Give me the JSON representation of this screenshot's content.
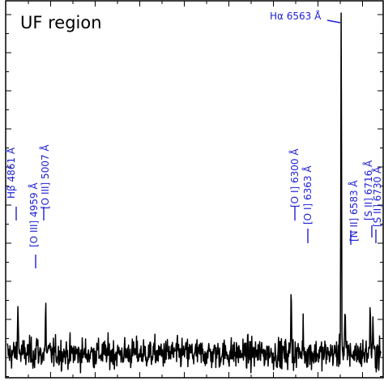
{
  "chart_data": {
    "type": "line",
    "title": "UF region",
    "xlabel": "",
    "ylabel": "",
    "xlim": [
      4800,
      6780
    ],
    "ylim": [
      -0.7,
      10.5
    ],
    "grid": false,
    "legend": "none",
    "line_color": "#000000",
    "label_color": "#1f1fd6",
    "noise_sigma": 0.32,
    "peaks": [
      {
        "label": "Hβ 4861 Å",
        "x": 4861,
        "y": 1.55
      },
      {
        "label": "[O III] 4959 Å",
        "x": 4959,
        "y": 0.4
      },
      {
        "label": "[O III] 5007 Å",
        "x": 5007,
        "y": 1.3
      },
      {
        "label": "[O I] 6300 Å",
        "x": 6300,
        "y": 1.9
      },
      {
        "label": "[O I] 6363 Å",
        "x": 6363,
        "y": 0.85
      },
      {
        "label": "Hα 6563 Å",
        "x": 6563,
        "y": 10.0
      },
      {
        "label": "[N II] 6583 Å",
        "x": 6583,
        "y": 1.2
      },
      {
        "label": "[S II] 6716 Å",
        "x": 6716,
        "y": 1.5
      },
      {
        "label": "[S II] 6730 Å",
        "x": 6730,
        "y": 0.7
      }
    ]
  }
}
